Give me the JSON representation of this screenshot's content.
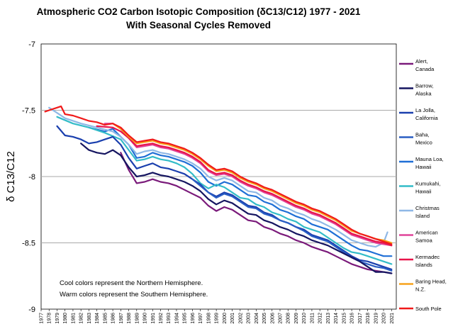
{
  "chart_data": {
    "type": "line",
    "title_line1": "Atmospheric CO2 Carbon Isotopic Composition (δC13/C12) 1977 - 2021",
    "title_line2": "With Seasonal Cycles Removed",
    "xlabel": "",
    "ylabel": "δ C13/C12",
    "xlim": [
      1977,
      2021.6
    ],
    "ylim": [
      -9,
      -7
    ],
    "yticks": [
      -7,
      -7.5,
      -8,
      -8.5,
      -9
    ],
    "ytick_labels": [
      "-7",
      "-7.5",
      "-8",
      "-8.5",
      "-9"
    ],
    "xticks": [
      1977,
      1978,
      1979,
      1980,
      1981,
      1982,
      1983,
      1984,
      1985,
      1986,
      1987,
      1988,
      1989,
      1990,
      1991,
      1992,
      1993,
      1994,
      1995,
      1996,
      1997,
      1998,
      1999,
      2000,
      2001,
      2002,
      2003,
      2004,
      2005,
      2006,
      2007,
      2008,
      2009,
      2010,
      2011,
      2012,
      2013,
      2014,
      2015,
      2016,
      2017,
      2018,
      2019,
      2020,
      2021
    ],
    "grid": "horizontal",
    "annotation_line1": "Cool colors represent the Northern Hemisphere.",
    "annotation_line2": "Warm colors represent the Southern Hemisphere.",
    "series": [
      {
        "name": "Mauna Loa, Hawaii",
        "label_lines": [
          "Mauna Loa,",
          "Hawaii"
        ],
        "color": "#1f6fd6",
        "x": [
          1983,
          1985,
          1986,
          1987,
          1988,
          1989,
          1990,
          1991,
          1992,
          1993,
          1994,
          1995,
          1996,
          1997,
          1998,
          1999,
          2000,
          2001,
          2002,
          2003,
          2004,
          2005,
          2006,
          2007,
          2008,
          2009,
          2010,
          2011,
          2012,
          2013,
          2014,
          2015,
          2016,
          2017,
          2018,
          2019,
          2020,
          2021
        ],
        "y": [
          -7.63,
          -7.66,
          -7.64,
          -7.7,
          -7.76,
          -7.86,
          -7.85,
          -7.82,
          -7.84,
          -7.85,
          -7.87,
          -7.89,
          -7.92,
          -7.97,
          -8.04,
          -8.07,
          -8.04,
          -8.06,
          -8.1,
          -8.14,
          -8.15,
          -8.19,
          -8.21,
          -8.25,
          -8.27,
          -8.3,
          -8.32,
          -8.36,
          -8.38,
          -8.4,
          -8.44,
          -8.48,
          -8.52,
          -8.55,
          -8.56,
          -8.58,
          -8.6,
          -8.6
        ]
      },
      {
        "name": "Kumukahi, Hawaii",
        "label_lines": [
          "Kumukahi,",
          "Hawaii"
        ],
        "color": "#33bcc8",
        "x": [
          1979,
          1981,
          1983,
          1985,
          1987,
          1988,
          1989,
          1990,
          1991,
          1992,
          1993,
          1994,
          1995,
          1996,
          1997,
          1998,
          1999,
          2000,
          2001,
          2002,
          2003,
          2004,
          2005,
          2006,
          2007,
          2008,
          2009,
          2010,
          2011,
          2012,
          2013,
          2014,
          2015,
          2016,
          2017,
          2018,
          2019,
          2020,
          2021
        ],
        "y": [
          -7.55,
          -7.6,
          -7.63,
          -7.67,
          -7.72,
          -7.8,
          -7.88,
          -7.87,
          -7.85,
          -7.87,
          -7.88,
          -7.9,
          -7.93,
          -7.98,
          -8.05,
          -8.09,
          -8.06,
          -8.08,
          -8.12,
          -8.16,
          -8.17,
          -8.21,
          -8.23,
          -8.27,
          -8.29,
          -8.32,
          -8.34,
          -8.38,
          -8.4,
          -8.42,
          -8.46,
          -8.5,
          -8.54,
          -8.57,
          -8.58,
          -8.6,
          -8.62,
          -8.64,
          -8.66
        ]
      },
      {
        "name": "Christmas Island",
        "label_lines": [
          "Christmas",
          "Island"
        ],
        "color": "#8fb8e6",
        "x": [
          1978,
          1979,
          1980,
          1982,
          1984,
          1986,
          1987,
          1988,
          1989,
          1990,
          1991,
          1992,
          1993,
          1994,
          1995,
          1996,
          1997,
          1998,
          1999,
          2000,
          2001,
          2002,
          2003,
          2004,
          2005,
          2006,
          2007,
          2008,
          2009,
          2010,
          2011,
          2012,
          2013,
          2014,
          2015,
          2016,
          2017,
          2018,
          2019,
          2020,
          2020.5
        ],
        "y": [
          -7.48,
          -7.52,
          -7.56,
          -7.6,
          -7.63,
          -7.66,
          -7.7,
          -7.76,
          -7.83,
          -7.81,
          -7.8,
          -7.82,
          -7.83,
          -7.85,
          -7.87,
          -7.9,
          -7.94,
          -8.0,
          -8.03,
          -8.01,
          -8.03,
          -8.07,
          -8.11,
          -8.12,
          -8.16,
          -8.18,
          -8.22,
          -8.24,
          -8.27,
          -8.29,
          -8.32,
          -8.34,
          -8.37,
          -8.4,
          -8.44,
          -8.48,
          -8.5,
          -8.52,
          -8.53,
          -8.5,
          -8.42
        ]
      },
      {
        "name": "American Samoa",
        "label_lines": [
          "American",
          "Samoa"
        ],
        "color": "#e0449a",
        "x": [
          1985,
          1986,
          1987,
          1988,
          1989,
          1990,
          1991,
          1992,
          1993,
          1994,
          1995,
          1996,
          1997,
          1998,
          1999,
          2000,
          2001,
          2002,
          2003,
          2004,
          2005,
          2006,
          2007,
          2008,
          2009,
          2010,
          2011,
          2012,
          2013,
          2014,
          2015,
          2016,
          2017,
          2018,
          2019,
          2020,
          2021
        ],
        "y": [
          -7.6,
          -7.6,
          -7.64,
          -7.71,
          -7.78,
          -7.77,
          -7.76,
          -7.78,
          -7.79,
          -7.81,
          -7.83,
          -7.86,
          -7.9,
          -7.96,
          -7.99,
          -7.98,
          -8.0,
          -8.04,
          -8.07,
          -8.09,
          -8.12,
          -8.14,
          -8.17,
          -8.2,
          -8.23,
          -8.25,
          -8.28,
          -8.3,
          -8.33,
          -8.36,
          -8.4,
          -8.44,
          -8.46,
          -8.48,
          -8.5,
          -8.51,
          -8.52
        ]
      },
      {
        "name": "Kermadec Islands",
        "label_lines": [
          "Kermadec",
          "Islands"
        ],
        "color": "#e8154a",
        "x": [
          1984,
          1986,
          1987,
          1988,
          1989,
          1990,
          1991,
          1992,
          1993,
          1994,
          1995,
          1996,
          1997,
          1998,
          1999,
          2000,
          2001,
          2002,
          2003,
          2004,
          2005,
          2006,
          2007,
          2008,
          2009,
          2010,
          2011,
          2012,
          2013,
          2014,
          2015,
          2016,
          2017,
          2018,
          2019,
          2020,
          2021
        ],
        "y": [
          -7.62,
          -7.63,
          -7.66,
          -7.71,
          -7.77,
          -7.76,
          -7.75,
          -7.77,
          -7.78,
          -7.8,
          -7.82,
          -7.85,
          -7.89,
          -7.95,
          -7.98,
          -7.97,
          -7.99,
          -8.03,
          -8.06,
          -8.08,
          -8.11,
          -8.13,
          -8.16,
          -8.19,
          -8.22,
          -8.24,
          -8.27,
          -8.29,
          -8.32,
          -8.35,
          -8.39,
          -8.43,
          -8.45,
          -8.47,
          -8.49,
          -8.5,
          -8.52
        ]
      },
      {
        "name": "Baring Head, N.Z.",
        "label_lines": [
          "Baring Head,",
          "N.Z."
        ],
        "color": "#f7a21b",
        "x": [
          1986,
          1987,
          1988,
          1989,
          1990,
          1991,
          1992,
          1993,
          1994,
          1995,
          1996,
          1997,
          1998,
          1999,
          2000,
          2001,
          2002,
          2003,
          2004,
          2005,
          2006,
          2007,
          2008,
          2009,
          2010,
          2011,
          2012,
          2013,
          2014,
          2015,
          2016,
          2017,
          2018,
          2019,
          2020,
          2021
        ],
        "y": [
          -7.6,
          -7.64,
          -7.7,
          -7.75,
          -7.74,
          -7.73,
          -7.75,
          -7.76,
          -7.78,
          -7.8,
          -7.83,
          -7.87,
          -7.92,
          -7.96,
          -7.95,
          -7.97,
          -8.01,
          -8.04,
          -8.06,
          -8.09,
          -8.11,
          -8.14,
          -8.17,
          -8.2,
          -8.22,
          -8.25,
          -8.27,
          -8.3,
          -8.33,
          -8.37,
          -8.41,
          -8.43,
          -8.45,
          -8.47,
          -8.48,
          -8.5
        ]
      },
      {
        "name": "South Pole",
        "label_lines": [
          "South Pole"
        ],
        "color": "#f01a1a",
        "x": [
          1977.5,
          1978,
          1979,
          1979.5,
          1980,
          1981,
          1982,
          1983,
          1984,
          1985,
          1986,
          1987,
          1988,
          1989,
          1990,
          1991,
          1992,
          1993,
          1994,
          1995,
          1996,
          1997,
          1998,
          1999,
          2000,
          2001,
          2002,
          2003,
          2004,
          2005,
          2006,
          2007,
          2008,
          2009,
          2010,
          2011,
          2012,
          2013,
          2014,
          2015,
          2016,
          2017,
          2018,
          2019,
          2020,
          2021
        ],
        "y": [
          -7.51,
          -7.5,
          -7.48,
          -7.47,
          -7.53,
          -7.54,
          -7.56,
          -7.58,
          -7.59,
          -7.61,
          -7.6,
          -7.63,
          -7.69,
          -7.74,
          -7.73,
          -7.72,
          -7.74,
          -7.75,
          -7.77,
          -7.79,
          -7.82,
          -7.86,
          -7.91,
          -7.95,
          -7.94,
          -7.96,
          -8.0,
          -8.03,
          -8.05,
          -8.08,
          -8.1,
          -8.13,
          -8.16,
          -8.19,
          -8.21,
          -8.24,
          -8.26,
          -8.29,
          -8.32,
          -8.36,
          -8.4,
          -8.43,
          -8.45,
          -8.47,
          -8.49,
          -8.51
        ]
      },
      {
        "name": "La Jolla, California",
        "label_lines": [
          "La Jolla,",
          "California"
        ],
        "color": "#1a3fae",
        "x": [
          1979,
          1980,
          1981,
          1982,
          1983,
          1984,
          1985,
          1986,
          1987,
          1988,
          1989,
          1990,
          1991,
          1992,
          1993,
          1994,
          1995,
          1996,
          1997,
          1998,
          1999,
          2000,
          2001,
          2002,
          2003,
          2004,
          2005,
          2006,
          2007,
          2008,
          2009,
          2010,
          2011,
          2012,
          2013,
          2014,
          2015,
          2016,
          2017,
          2018,
          2019,
          2020,
          2021
        ],
        "y": [
          -7.62,
          -7.69,
          -7.7,
          -7.72,
          -7.75,
          -7.74,
          -7.72,
          -7.7,
          -7.76,
          -7.86,
          -7.94,
          -7.92,
          -7.9,
          -7.93,
          -7.94,
          -7.96,
          -7.98,
          -8.02,
          -8.06,
          -8.12,
          -8.15,
          -8.12,
          -8.14,
          -8.18,
          -8.22,
          -8.23,
          -8.27,
          -8.29,
          -8.33,
          -8.35,
          -8.38,
          -8.4,
          -8.44,
          -8.46,
          -8.48,
          -8.52,
          -8.56,
          -8.6,
          -8.63,
          -8.64,
          -8.66,
          -8.68,
          -8.7
        ]
      },
      {
        "name": "Baha, Mexico",
        "label_lines": [
          "Baha,",
          "Mexico"
        ],
        "color": "#2a5ec4",
        "x": [
          1996,
          1997,
          1998,
          1999,
          2000,
          2001,
          2002,
          2003,
          2004,
          2005,
          2006,
          2007,
          2008,
          2009,
          2010,
          2011,
          2012,
          2013,
          2014,
          2015,
          2016,
          2017,
          2018,
          2019,
          2020,
          2021
        ],
        "y": [
          -8.02,
          -8.07,
          -8.12,
          -8.16,
          -8.13,
          -8.15,
          -8.19,
          -8.23,
          -8.24,
          -8.28,
          -8.3,
          -8.33,
          -8.35,
          -8.38,
          -8.41,
          -8.45,
          -8.47,
          -8.49,
          -8.53,
          -8.57,
          -8.61,
          -8.64,
          -8.66,
          -8.68,
          -8.69,
          -8.71
        ]
      },
      {
        "name": "Alert, Canada",
        "label_lines": [
          "Alert,",
          "Canada"
        ],
        "color": "#7a1a7a",
        "x": [
          1987,
          1988,
          1989,
          1990,
          1991,
          1992,
          1993,
          1994,
          1995,
          1996,
          1997,
          1998,
          1999,
          2000,
          2001,
          2002,
          2003,
          2004,
          2005,
          2006,
          2007,
          2008,
          2009,
          2010,
          2011,
          2012,
          2013,
          2014,
          2015,
          2016,
          2017,
          2018,
          2019,
          2020,
          2021
        ],
        "y": [
          -7.82,
          -7.95,
          -8.05,
          -8.04,
          -8.02,
          -8.04,
          -8.05,
          -8.07,
          -8.1,
          -8.13,
          -8.16,
          -8.22,
          -8.26,
          -8.23,
          -8.25,
          -8.29,
          -8.33,
          -8.34,
          -8.38,
          -8.4,
          -8.43,
          -8.45,
          -8.48,
          -8.5,
          -8.53,
          -8.55,
          -8.57,
          -8.6,
          -8.63,
          -8.66,
          -8.68,
          -8.7,
          -8.71,
          -8.72,
          -8.73
        ]
      },
      {
        "name": "Barrow, Alaska",
        "label_lines": [
          "Barrow,",
          "Alaska"
        ],
        "color": "#151560",
        "x": [
          1982,
          1983,
          1984,
          1985,
          1986,
          1987,
          1988,
          1989,
          1990,
          1991,
          1992,
          1993,
          1994,
          1995,
          1996,
          1997,
          1998,
          1999,
          2000,
          2001,
          2002,
          2003,
          2004,
          2005,
          2006,
          2007,
          2008,
          2009,
          2010,
          2011,
          2012,
          2013,
          2014,
          2015,
          2016,
          2017,
          2018,
          2019,
          2020,
          2021
        ],
        "y": [
          -7.75,
          -7.8,
          -7.82,
          -7.83,
          -7.8,
          -7.84,
          -7.93,
          -8.0,
          -7.99,
          -7.97,
          -7.99,
          -8.0,
          -8.02,
          -8.04,
          -8.07,
          -8.11,
          -8.17,
          -8.21,
          -8.18,
          -8.2,
          -8.24,
          -8.28,
          -8.29,
          -8.33,
          -8.35,
          -8.38,
          -8.4,
          -8.43,
          -8.45,
          -8.48,
          -8.5,
          -8.52,
          -8.55,
          -8.58,
          -8.61,
          -8.64,
          -8.68,
          -8.72,
          -8.72,
          -8.73
        ]
      }
    ]
  }
}
